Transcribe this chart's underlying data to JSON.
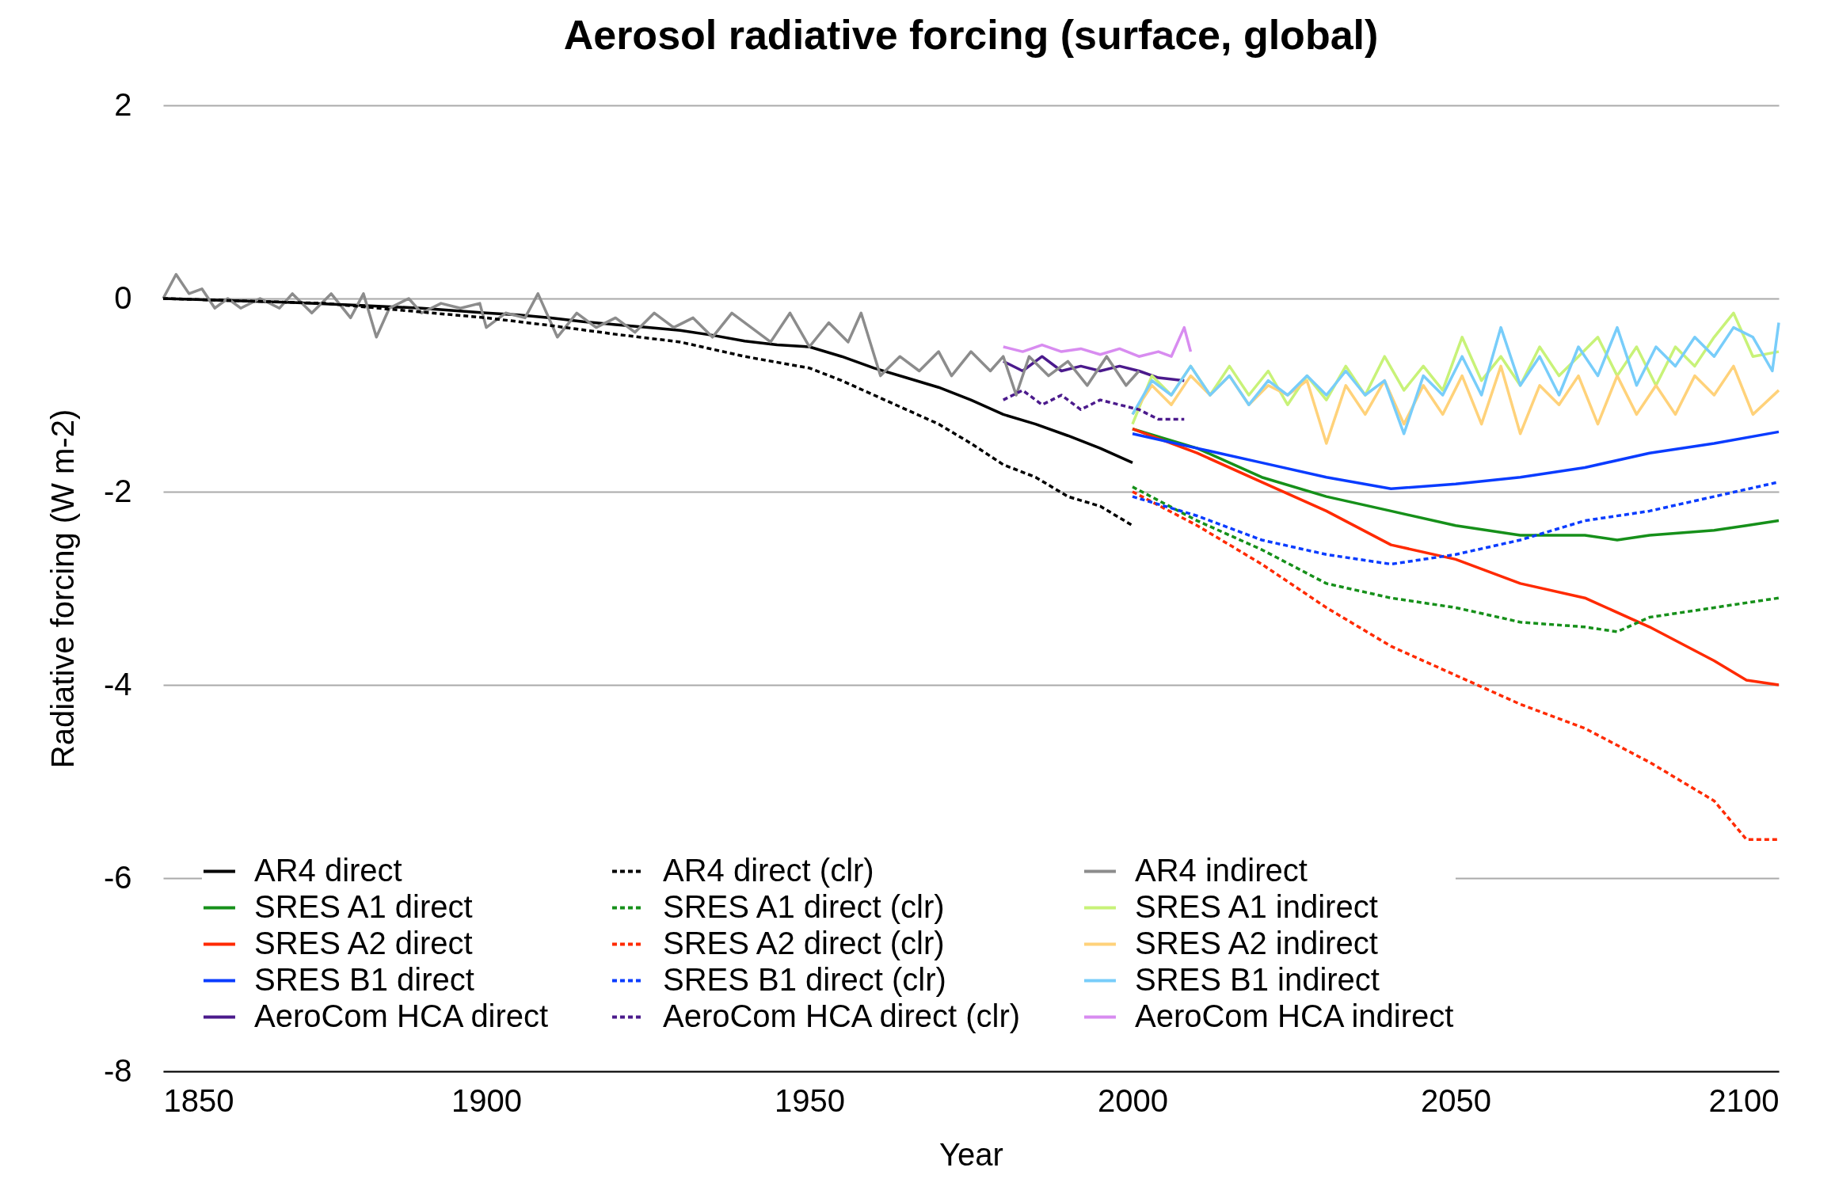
{
  "chart_data": {
    "type": "line",
    "title": "Aerosol radiative forcing (surface, global)",
    "xlabel": "Year",
    "ylabel": "Radiative forcing (W m-2)",
    "xlim": [
      1850,
      2100
    ],
    "xticks": [
      1850,
      1900,
      1950,
      2000,
      2050,
      2100
    ],
    "ylim": [
      -8,
      2
    ],
    "yticks": [
      -8,
      -6,
      -4,
      -2,
      0,
      2
    ],
    "grid": "y",
    "legend": "bottom",
    "marker": "none",
    "series": [
      {
        "name": "AR4 direct",
        "color": "#000000",
        "line_style": "solid",
        "x": [
          1850,
          1860,
          1870,
          1880,
          1890,
          1900,
          1905,
          1910,
          1915,
          1920,
          1925,
          1930,
          1935,
          1940,
          1945,
          1950,
          1955,
          1960,
          1965,
          1970,
          1975,
          1980,
          1985,
          1990,
          1995,
          2000
        ],
        "values": [
          0,
          -0.02,
          -0.04,
          -0.07,
          -0.1,
          -0.15,
          -0.17,
          -0.2,
          -0.24,
          -0.27,
          -0.3,
          -0.33,
          -0.38,
          -0.44,
          -0.48,
          -0.5,
          -0.6,
          -0.72,
          -0.82,
          -0.92,
          -1.05,
          -1.2,
          -1.3,
          -1.42,
          -1.55,
          -1.7
        ]
      },
      {
        "name": "SRES A1 direct",
        "color": "#16901a",
        "line_style": "solid",
        "x": [
          2000,
          2010,
          2020,
          2030,
          2040,
          2050,
          2060,
          2070,
          2075,
          2080,
          2090,
          2095,
          2100
        ],
        "values": [
          -1.35,
          -1.55,
          -1.85,
          -2.05,
          -2.2,
          -2.35,
          -2.45,
          -2.45,
          -2.5,
          -2.45,
          -2.4,
          -2.35,
          -2.3
        ]
      },
      {
        "name": "SRES A2 direct",
        "color": "#ff2a00",
        "line_style": "solid",
        "x": [
          2000,
          2010,
          2020,
          2030,
          2040,
          2050,
          2060,
          2070,
          2080,
          2090,
          2095,
          2100
        ],
        "values": [
          -1.35,
          -1.6,
          -1.9,
          -2.2,
          -2.55,
          -2.7,
          -2.95,
          -3.1,
          -3.4,
          -3.75,
          -3.95,
          -4.0
        ]
      },
      {
        "name": "SRES B1 direct",
        "color": "#0a3cff",
        "line_style": "solid",
        "x": [
          2000,
          2010,
          2020,
          2030,
          2040,
          2050,
          2060,
          2070,
          2080,
          2090,
          2100
        ],
        "values": [
          -1.4,
          -1.55,
          -1.7,
          -1.85,
          -1.97,
          -1.92,
          -1.85,
          -1.75,
          -1.6,
          -1.5,
          -1.38
        ]
      },
      {
        "name": "AeroCom HCA direct",
        "color": "#4b1a8c",
        "line_style": "solid",
        "x": [
          1980,
          1983,
          1986,
          1989,
          1992,
          1995,
          1998,
          2001,
          2004,
          2008
        ],
        "values": [
          -0.65,
          -0.75,
          -0.6,
          -0.75,
          -0.7,
          -0.75,
          -0.7,
          -0.75,
          -0.82,
          -0.85
        ]
      },
      {
        "name": "AR4 direct (clr)",
        "color": "#000000",
        "line_style": "dashed",
        "x": [
          1850,
          1875,
          1900,
          1910,
          1920,
          1930,
          1940,
          1950,
          1955,
          1960,
          1965,
          1970,
          1975,
          1980,
          1985,
          1990,
          1995,
          2000
        ],
        "values": [
          0,
          -0.05,
          -0.2,
          -0.28,
          -0.37,
          -0.45,
          -0.6,
          -0.72,
          -0.85,
          -1.0,
          -1.15,
          -1.3,
          -1.5,
          -1.72,
          -1.85,
          -2.05,
          -2.15,
          -2.35
        ]
      },
      {
        "name": "SRES A1 direct (clr)",
        "color": "#16901a",
        "line_style": "dashed",
        "x": [
          2000,
          2010,
          2020,
          2030,
          2040,
          2050,
          2060,
          2070,
          2075,
          2080,
          2090,
          2100
        ],
        "values": [
          -1.95,
          -2.3,
          -2.6,
          -2.95,
          -3.1,
          -3.2,
          -3.35,
          -3.4,
          -3.45,
          -3.3,
          -3.2,
          -3.1
        ]
      },
      {
        "name": "SRES A2 direct (clr)",
        "color": "#ff2a00",
        "line_style": "dashed",
        "x": [
          2000,
          2010,
          2020,
          2030,
          2040,
          2050,
          2060,
          2070,
          2080,
          2090,
          2095,
          2100
        ],
        "values": [
          -2.0,
          -2.35,
          -2.75,
          -3.2,
          -3.6,
          -3.9,
          -4.2,
          -4.45,
          -4.8,
          -5.2,
          -5.6,
          -5.6
        ]
      },
      {
        "name": "SRES B1 direct (clr)",
        "color": "#0a3cff",
        "line_style": "dashed",
        "x": [
          2000,
          2010,
          2020,
          2030,
          2040,
          2050,
          2060,
          2070,
          2080,
          2090,
          2100
        ],
        "values": [
          -2.05,
          -2.25,
          -2.5,
          -2.65,
          -2.75,
          -2.65,
          -2.5,
          -2.3,
          -2.2,
          -2.05,
          -1.9
        ]
      },
      {
        "name": "AeroCom HCA direct (clr)",
        "color": "#4b1a8c",
        "line_style": "dashed",
        "x": [
          1980,
          1983,
          1986,
          1989,
          1992,
          1995,
          1998,
          2001,
          2004,
          2008
        ],
        "values": [
          -1.05,
          -0.95,
          -1.1,
          -1.0,
          -1.15,
          -1.05,
          -1.1,
          -1.15,
          -1.25,
          -1.25
        ]
      },
      {
        "name": "AR4 indirect",
        "color": "#8c8c8c",
        "line_style": "solid",
        "x": [
          1850,
          1852,
          1854,
          1856,
          1858,
          1860,
          1862,
          1865,
          1868,
          1870,
          1873,
          1876,
          1879,
          1881,
          1883,
          1885,
          1888,
          1890,
          1893,
          1896,
          1899,
          1900,
          1903,
          1906,
          1908,
          1911,
          1914,
          1917,
          1920,
          1923,
          1926,
          1929,
          1932,
          1935,
          1938,
          1941,
          1944,
          1947,
          1950,
          1953,
          1956,
          1958,
          1961,
          1964,
          1967,
          1970,
          1972,
          1975,
          1978,
          1980,
          1982,
          1984,
          1987,
          1990,
          1993,
          1996,
          1999,
          2001
        ],
        "values": [
          0,
          0.25,
          0.05,
          0.1,
          -0.1,
          0,
          -0.1,
          0,
          -0.1,
          0.05,
          -0.15,
          0.05,
          -0.2,
          0.05,
          -0.4,
          -0.1,
          0,
          -0.15,
          -0.05,
          -0.1,
          -0.05,
          -0.3,
          -0.15,
          -0.2,
          0.05,
          -0.4,
          -0.15,
          -0.3,
          -0.2,
          -0.35,
          -0.15,
          -0.3,
          -0.2,
          -0.4,
          -0.15,
          -0.3,
          -0.45,
          -0.15,
          -0.5,
          -0.25,
          -0.45,
          -0.15,
          -0.8,
          -0.6,
          -0.75,
          -0.55,
          -0.8,
          -0.55,
          -0.75,
          -0.6,
          -1.0,
          -0.6,
          -0.8,
          -0.65,
          -0.9,
          -0.6,
          -0.9,
          -0.75
        ]
      },
      {
        "name": "SRES A1 indirect",
        "color": "#c8f278",
        "line_style": "solid",
        "x": [
          2000,
          2003,
          2006,
          2009,
          2012,
          2015,
          2018,
          2021,
          2024,
          2027,
          2030,
          2033,
          2036,
          2039,
          2042,
          2045,
          2048,
          2051,
          2054,
          2057,
          2060,
          2063,
          2066,
          2069,
          2072,
          2075,
          2078,
          2081,
          2084,
          2087,
          2090,
          2093,
          2096,
          2100
        ],
        "values": [
          -1.3,
          -0.8,
          -1.0,
          -0.7,
          -1.0,
          -0.7,
          -1.0,
          -0.75,
          -1.1,
          -0.8,
          -1.05,
          -0.7,
          -1.0,
          -0.6,
          -0.95,
          -0.7,
          -0.95,
          -0.4,
          -0.85,
          -0.6,
          -0.9,
          -0.5,
          -0.8,
          -0.6,
          -0.4,
          -0.8,
          -0.5,
          -0.9,
          -0.5,
          -0.7,
          -0.4,
          -0.15,
          -0.6,
          -0.55
        ]
      },
      {
        "name": "SRES A2 indirect",
        "color": "#ffd27a",
        "line_style": "solid",
        "x": [
          2000,
          2003,
          2006,
          2009,
          2012,
          2015,
          2018,
          2021,
          2024,
          2027,
          2030,
          2033,
          2036,
          2039,
          2042,
          2045,
          2048,
          2051,
          2054,
          2057,
          2060,
          2063,
          2066,
          2069,
          2072,
          2075,
          2078,
          2081,
          2084,
          2087,
          2090,
          2093,
          2096,
          2100
        ],
        "values": [
          -1.2,
          -0.9,
          -1.1,
          -0.8,
          -1.0,
          -0.8,
          -1.1,
          -0.9,
          -1.0,
          -0.85,
          -1.5,
          -0.9,
          -1.2,
          -0.85,
          -1.3,
          -0.9,
          -1.2,
          -0.8,
          -1.3,
          -0.7,
          -1.4,
          -0.9,
          -1.1,
          -0.8,
          -1.3,
          -0.8,
          -1.2,
          -0.9,
          -1.2,
          -0.8,
          -1.0,
          -0.7,
          -1.2,
          -0.95
        ]
      },
      {
        "name": "SRES B1 indirect",
        "color": "#78cdfa",
        "line_style": "solid",
        "x": [
          2000,
          2003,
          2006,
          2009,
          2012,
          2015,
          2018,
          2021,
          2024,
          2027,
          2030,
          2033,
          2036,
          2039,
          2042,
          2045,
          2048,
          2051,
          2054,
          2057,
          2060,
          2063,
          2066,
          2069,
          2072,
          2075,
          2078,
          2081,
          2084,
          2087,
          2090,
          2093,
          2096,
          2099,
          2100
        ],
        "values": [
          -1.2,
          -0.85,
          -1.0,
          -0.7,
          -1.0,
          -0.8,
          -1.1,
          -0.85,
          -1.0,
          -0.8,
          -1.0,
          -0.75,
          -1.0,
          -0.85,
          -1.4,
          -0.8,
          -1.0,
          -0.6,
          -1.0,
          -0.3,
          -0.9,
          -0.6,
          -1.0,
          -0.5,
          -0.8,
          -0.3,
          -0.9,
          -0.5,
          -0.7,
          -0.4,
          -0.6,
          -0.3,
          -0.4,
          -0.75,
          -0.25
        ]
      },
      {
        "name": "AeroCom HCA indirect",
        "color": "#d88cf0",
        "line_style": "solid",
        "x": [
          1980,
          1983,
          1986,
          1989,
          1992,
          1995,
          1998,
          2001,
          2004,
          2006,
          2008,
          2009
        ],
        "values": [
          -0.5,
          -0.55,
          -0.48,
          -0.55,
          -0.52,
          -0.58,
          -0.52,
          -0.6,
          -0.55,
          -0.6,
          -0.3,
          -0.55
        ]
      }
    ]
  }
}
